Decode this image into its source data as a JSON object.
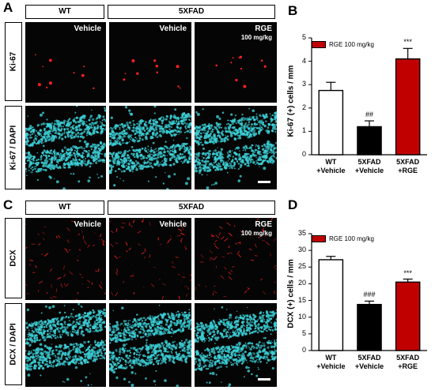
{
  "panel_letters": {
    "a": "A",
    "b": "B",
    "c": "C",
    "d": "D"
  },
  "top_figure": {
    "header_wt": "WT",
    "header_5xfad": "5XFAD",
    "row1_label": "Ki-67",
    "row2_label": "Ki-67 / DAPI",
    "col1_label": "Vehicle",
    "col2_label": "Vehicle",
    "col3_label": "RGE",
    "col3_sub": "100 mg/kg"
  },
  "bottom_figure": {
    "header_wt": "WT",
    "header_5xfad": "5XFAD",
    "row1_label": "DCX",
    "row2_label": "DCX / DAPI",
    "col1_label": "Vehicle",
    "col2_label": "Vehicle",
    "col3_label": "RGE",
    "col3_sub": "100 mg/kg"
  },
  "colors": {
    "red_stain": "#ff2020",
    "dapi": "#3ccfd6",
    "rge_bar": "#c00000"
  },
  "chart_data": [
    {
      "type": "bar",
      "panel": "B",
      "legend": "RGE 100 mg/kg",
      "ylabel": "Ki-67 (+) cells / mm",
      "categories": [
        "WT +Vehicle",
        "5XFAD +Vehicle",
        "5XFAD +RGE"
      ],
      "category_lines": [
        [
          "WT",
          "+Vehicle"
        ],
        [
          "5XFAD",
          "+Vehicle"
        ],
        [
          "5XFAD",
          "+RGE"
        ]
      ],
      "values": [
        2.75,
        1.2,
        4.1
      ],
      "errors": [
        0.35,
        0.25,
        0.45
      ],
      "bar_colors": [
        "#ffffff",
        "#000000",
        "#c00000"
      ],
      "significance": [
        "",
        "##",
        "***"
      ],
      "ylim": [
        0,
        5
      ],
      "yticks": [
        "0",
        "1",
        "2",
        "3",
        "4",
        "5"
      ]
    },
    {
      "type": "bar",
      "panel": "D",
      "legend": "RGE 100 mg/kg",
      "ylabel": "DCX (+) cells / mm",
      "categories": [
        "WT +Vehicle",
        "5XFAD +Vehicle",
        "5XFAD +RGE"
      ],
      "category_lines": [
        [
          "WT",
          "+Vehicle"
        ],
        [
          "5XFAD",
          "+Vehicle"
        ],
        [
          "5XFAD",
          "+RGE"
        ]
      ],
      "values": [
        27.2,
        13.8,
        20.5
      ],
      "errors": [
        1.0,
        1.0,
        0.9
      ],
      "bar_colors": [
        "#ffffff",
        "#000000",
        "#c00000"
      ],
      "significance": [
        "",
        "###",
        "***"
      ],
      "ylim": [
        0,
        35
      ],
      "yticks": [
        "0",
        "5",
        "10",
        "15",
        "20",
        "25",
        "30",
        "35"
      ]
    }
  ]
}
